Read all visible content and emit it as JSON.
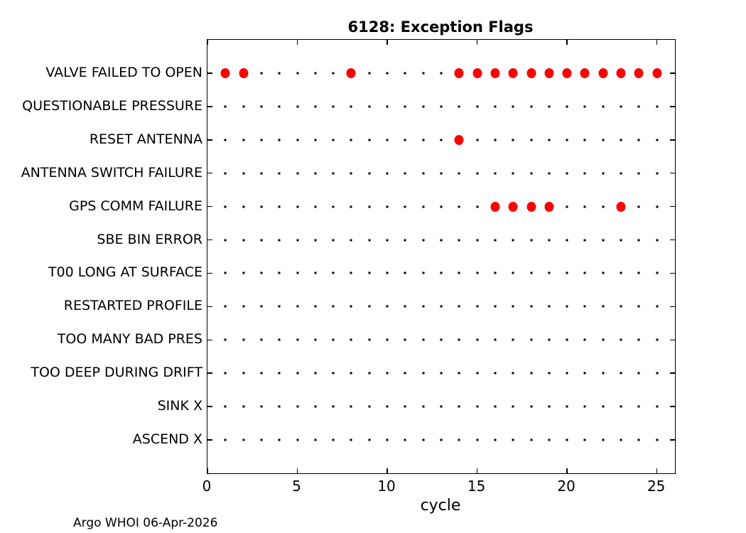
{
  "figure": {
    "footer": "Argo WHOI 06-Apr-2026"
  },
  "chart_data": {
    "type": "scatter",
    "title": "6128: Exception Flags",
    "xlabel": "cycle",
    "ylabel": "",
    "xlim": [
      0,
      26
    ],
    "xticks": [
      0,
      5,
      10,
      15,
      20,
      25
    ],
    "cycle_min": 1,
    "cycle_max": 25,
    "grid": false,
    "legend": "none",
    "categories": [
      "VALVE FAILED TO OPEN",
      "QUESTIONABLE PRESSURE",
      "RESET ANTENNA",
      "ANTENNA SWITCH FAILURE",
      "GPS COMM FAILURE",
      "SBE BIN ERROR",
      "T00 LONG AT SURFACE",
      "RESTARTED PROFILE",
      "TOO MANY BAD PRES",
      "TOO DEEP DURING DRIFT",
      "SINK X",
      "ASCEND X"
    ],
    "series": [
      {
        "name": "cycle grid (no exception)",
        "marker": "point",
        "color": "#000000",
        "description": "small black dot at every cycle 1-25 in every category row"
      },
      {
        "name": "exception flagged",
        "marker": "filled circle",
        "color": "#ff0000",
        "description": "large red dot at cycles where the exception flag occurred"
      }
    ],
    "flagged_cycles": [
      [
        1,
        2,
        8,
        14,
        15,
        16,
        17,
        18,
        19,
        20,
        21,
        22,
        23,
        24,
        25
      ],
      [],
      [
        14
      ],
      [],
      [
        16,
        17,
        18,
        19,
        23
      ],
      [],
      [],
      [],
      [],
      [],
      [],
      []
    ]
  }
}
